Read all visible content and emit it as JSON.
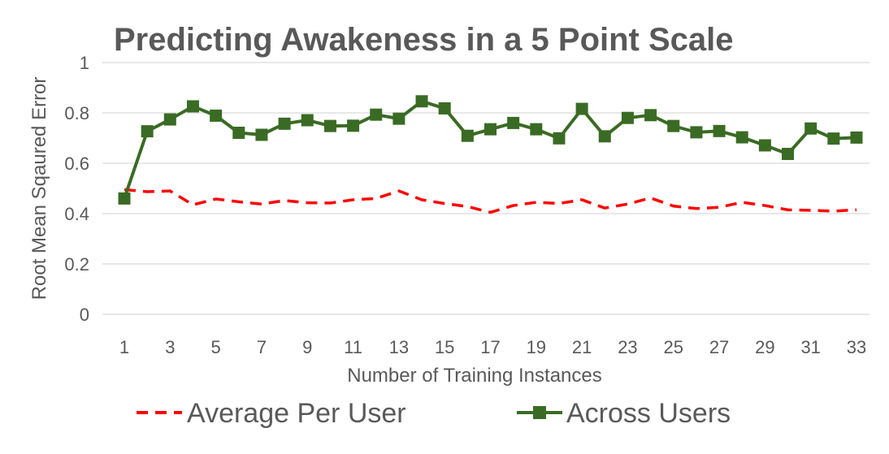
{
  "chart_data": {
    "type": "line",
    "title": "Predicting Awakeness in a 5 Point Scale",
    "xlabel": "Number of Training Instances",
    "ylabel": "Root Mean Sqaured Error",
    "ylim": [
      0,
      1
    ],
    "y_ticks": [
      "0",
      "0.2",
      "0.4",
      "0.6",
      "0.8",
      "1"
    ],
    "x_ticks": [
      "1",
      "3",
      "5",
      "7",
      "9",
      "11",
      "13",
      "15",
      "17",
      "19",
      "21",
      "23",
      "25",
      "27",
      "29",
      "31",
      "33"
    ],
    "grid": true,
    "legend_position": "bottom",
    "x": [
      1,
      2,
      3,
      4,
      5,
      6,
      7,
      8,
      9,
      10,
      11,
      12,
      13,
      14,
      15,
      16,
      17,
      18,
      19,
      20,
      21,
      22,
      23,
      24,
      25,
      26,
      27,
      28,
      29,
      30,
      31,
      32,
      33
    ],
    "series": [
      {
        "name": "Average Per User",
        "color": "#ff0000",
        "style": "dashed",
        "values": [
          0.495,
          0.487,
          0.49,
          0.435,
          0.458,
          0.447,
          0.438,
          0.452,
          0.443,
          0.442,
          0.455,
          0.46,
          0.49,
          0.455,
          0.44,
          0.428,
          0.405,
          0.432,
          0.445,
          0.44,
          0.455,
          0.422,
          0.438,
          0.462,
          0.43,
          0.42,
          0.425,
          0.445,
          0.432,
          0.415,
          0.413,
          0.41,
          0.415
        ]
      },
      {
        "name": "Across Users",
        "color": "#3a6b24",
        "style": "solid-square-markers",
        "values": [
          0.46,
          0.727,
          0.774,
          0.826,
          0.789,
          0.721,
          0.713,
          0.757,
          0.771,
          0.748,
          0.749,
          0.793,
          0.777,
          0.846,
          0.818,
          0.709,
          0.735,
          0.76,
          0.735,
          0.699,
          0.816,
          0.707,
          0.78,
          0.791,
          0.748,
          0.723,
          0.728,
          0.703,
          0.671,
          0.637,
          0.738,
          0.698,
          0.702
        ]
      }
    ]
  }
}
